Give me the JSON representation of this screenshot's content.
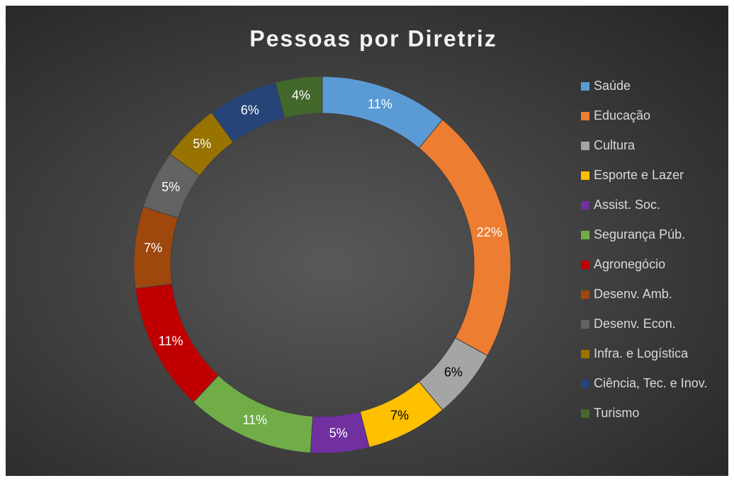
{
  "chart_data": {
    "type": "donut",
    "title": "Pessoas por Diretriz",
    "categories": [
      "Saúde",
      "Educação",
      "Cultura",
      "Esporte e Lazer",
      "Assist. Soc.",
      "Segurança Púb.",
      "Agronegócio",
      "Desenv. Amb.",
      "Desenv. Econ.",
      "Infra. e Logística",
      "Ciência, Tec. e Inov.",
      "Turismo"
    ],
    "values": [
      11,
      22,
      6,
      7,
      5,
      11,
      11,
      7,
      5,
      5,
      6,
      4
    ],
    "value_labels": [
      "11%",
      "22%",
      "6%",
      "7%",
      "5%",
      "11%",
      "11%",
      "7%",
      "5%",
      "5%",
      "6%",
      "4%"
    ],
    "colors": [
      "#5b9bd5",
      "#ed7d31",
      "#a5a5a5",
      "#ffc000",
      "#7030a0",
      "#70ad47",
      "#c00000",
      "#9e480e",
      "#636363",
      "#997300",
      "#264478",
      "#43682b"
    ],
    "legend": "right"
  }
}
